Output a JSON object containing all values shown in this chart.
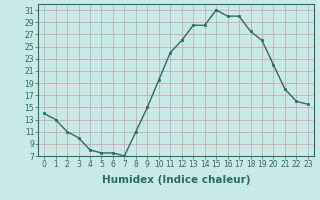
{
  "x": [
    0,
    1,
    2,
    3,
    4,
    5,
    6,
    7,
    8,
    9,
    10,
    11,
    12,
    13,
    14,
    15,
    16,
    17,
    18,
    19,
    20,
    21,
    22,
    23
  ],
  "y": [
    14,
    13,
    11,
    10,
    8,
    7.5,
    7.5,
    7,
    11,
    15,
    19.5,
    24,
    26,
    28.5,
    28.5,
    31,
    30,
    30,
    27.5,
    26,
    22,
    18,
    16,
    15.5
  ],
  "line_color": "#2e6b5e",
  "marker_color": "#2e6b5e",
  "bg_color": "#c8eae6",
  "grid_color": "#c0c8b8",
  "xlabel": "Humidex (Indice chaleur)",
  "xlim": [
    -0.5,
    23.5
  ],
  "ylim": [
    7,
    32
  ],
  "yticks": [
    7,
    9,
    11,
    13,
    15,
    17,
    19,
    21,
    23,
    25,
    27,
    29,
    31
  ],
  "xticks": [
    0,
    1,
    2,
    3,
    4,
    5,
    6,
    7,
    8,
    9,
    10,
    11,
    12,
    13,
    14,
    15,
    16,
    17,
    18,
    19,
    20,
    21,
    22,
    23
  ],
  "xlabel_fontsize": 7.5,
  "tick_fontsize": 5.5,
  "linewidth": 1.0,
  "markersize": 2.0
}
